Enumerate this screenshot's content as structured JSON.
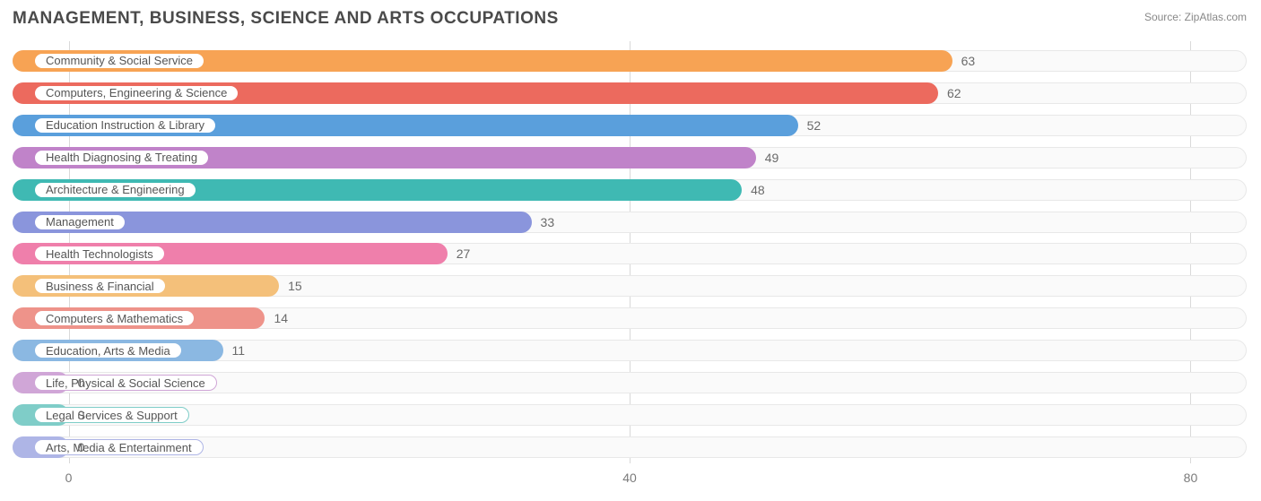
{
  "title": "MANAGEMENT, BUSINESS, SCIENCE AND ARTS OCCUPATIONS",
  "source": "Source: ZipAtlas.com",
  "chart": {
    "type": "bar-horizontal",
    "xlim": [
      -4,
      84
    ],
    "ticks": [
      0,
      40,
      80
    ],
    "background_color": "#ffffff",
    "track_bg": "#fafafa",
    "track_border": "#e8e8e8",
    "grid_color": "#d9d9d9",
    "title_color": "#4a4a4a",
    "label_color": "#555555",
    "value_color": "#6a6a6a",
    "title_fontsize": 19,
    "label_fontsize": 13,
    "value_fontsize": 14,
    "bars": [
      {
        "label": "Community & Social Service",
        "value": 63,
        "color": "#f7a354"
      },
      {
        "label": "Computers, Engineering & Science",
        "value": 62,
        "color": "#ec6a5e"
      },
      {
        "label": "Education Instruction & Library",
        "value": 52,
        "color": "#5a9fdc"
      },
      {
        "label": "Health Diagnosing & Treating",
        "value": 49,
        "color": "#c083c9"
      },
      {
        "label": "Architecture & Engineering",
        "value": 48,
        "color": "#3fb9b3"
      },
      {
        "label": "Management",
        "value": 33,
        "color": "#8a95dc"
      },
      {
        "label": "Health Technologists",
        "value": 27,
        "color": "#ef7fab"
      },
      {
        "label": "Business & Financial",
        "value": 15,
        "color": "#f4c07a"
      },
      {
        "label": "Computers & Mathematics",
        "value": 14,
        "color": "#ee938a"
      },
      {
        "label": "Education, Arts & Media",
        "value": 11,
        "color": "#8bb8e2"
      },
      {
        "label": "Life, Physical & Social Science",
        "value": 0,
        "color": "#d0a6d7"
      },
      {
        "label": "Legal Services & Support",
        "value": 0,
        "color": "#7fcdc8"
      },
      {
        "label": "Arts, Media & Entertainment",
        "value": 0,
        "color": "#aeb5e6"
      }
    ]
  }
}
